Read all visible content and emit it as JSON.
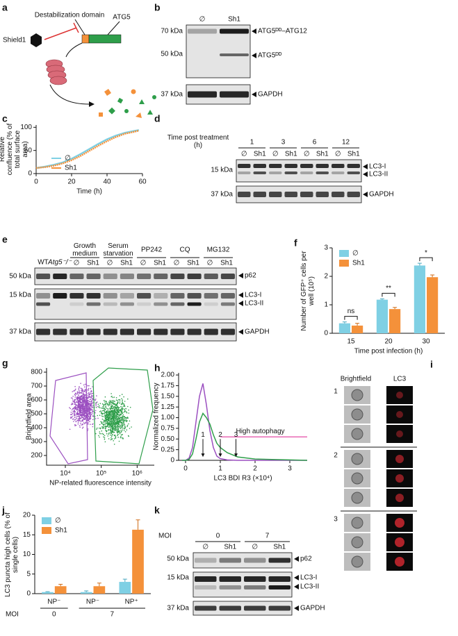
{
  "a": {
    "label": "a",
    "shield": "Shield1",
    "domain": "Destabilization domain",
    "gene": "ATG5"
  },
  "b": {
    "label": "b",
    "lanes": [
      "∅",
      "Sh1"
    ],
    "markers": [
      "70 kDa",
      "50 kDa",
      "37 kDa"
    ],
    "bands": [
      "ATG5ᴰᴰ–ATG12",
      "ATG5ᴰᴰ",
      "GAPDH"
    ]
  },
  "d": {
    "label": "d",
    "time_title": "Time post treatment (h)",
    "times": [
      "1",
      "3",
      "6",
      "12"
    ],
    "lanes": [
      "∅",
      "Sh1"
    ],
    "markers": [
      "15 kDa",
      "37 kDa"
    ],
    "bands": [
      "LC3-I",
      "LC3-II",
      "GAPDH"
    ]
  },
  "e": {
    "label": "e",
    "groups": [
      "WT",
      "Atg5⁻/⁻",
      "Growth medium",
      "Serum starvation",
      "PP242",
      "CQ",
      "MG132"
    ],
    "lanes": [
      "∅",
      "Sh1"
    ],
    "markers": [
      "50 kDa",
      "15 kDa",
      "37 kDa"
    ],
    "bands": [
      "p62",
      "LC3-I",
      "LC3-II",
      "GAPDH"
    ]
  },
  "i": {
    "label": "i",
    "columns": [
      "Brightfield",
      "LC3"
    ],
    "rows": [
      "1",
      "2",
      "3"
    ]
  },
  "k": {
    "label": "k",
    "moi_title": "MOI",
    "mois": [
      "0",
      "7"
    ],
    "lanes": [
      "∅",
      "Sh1"
    ],
    "markers": [
      "50 kDa",
      "15 kDa",
      "37 kDa"
    ],
    "bands": [
      "p62",
      "LC3-I",
      "LC3-II",
      "GAPDH"
    ]
  },
  "chart_data": [
    {
      "type": "line",
      "label": "c",
      "y_label": "Relative confluence (% of total surface area)",
      "x_label": "Time (h)",
      "x": [
        0,
        5,
        10,
        15,
        20,
        25,
        30,
        35,
        40,
        45,
        50,
        55,
        58
      ],
      "series": [
        {
          "name": "∅",
          "color": "#7fd0e4",
          "values": [
            12,
            15,
            19,
            24,
            32,
            42,
            53,
            64,
            74,
            82,
            88,
            92,
            94
          ]
        },
        {
          "name": "Sh1",
          "color": "#f4913a",
          "values": [
            12,
            14,
            17,
            22,
            29,
            38,
            49,
            60,
            70,
            79,
            86,
            90,
            93
          ]
        }
      ],
      "xlim": [
        0,
        60
      ],
      "xticks": [
        0,
        20,
        40,
        60
      ],
      "ylim": [
        0,
        105
      ],
      "yticks": [
        0,
        50,
        100
      ]
    },
    {
      "type": "bar",
      "label": "f",
      "y_label": "Number of GFP⁺ cells per well (10⁵)",
      "x_label": "Time post infection (h)",
      "categories": [
        "15",
        "20",
        "30"
      ],
      "series": [
        {
          "name": "∅",
          "color": "#7fd0e4",
          "values": [
            0.35,
            1.18,
            2.38
          ],
          "errors": [
            0.05,
            0.03,
            0.08
          ]
        },
        {
          "name": "Sh1",
          "color": "#f4913a",
          "values": [
            0.27,
            0.85,
            1.97
          ],
          "errors": [
            0.08,
            0.06,
            0.08
          ]
        }
      ],
      "annotations": [
        "ns",
        "**",
        "*"
      ],
      "ylim": [
        0,
        3
      ],
      "yticks": [
        0,
        1,
        2,
        3
      ]
    },
    {
      "type": "scatter",
      "label": "g",
      "y_label": "Brightfield area",
      "x_label": "NP-related fluorescence intensity",
      "log_x": true,
      "xlim": [
        3000,
        3000000
      ],
      "xticks": [
        {
          "value": 10000,
          "label": "10⁴"
        },
        {
          "value": 100000,
          "label": "10⁵"
        },
        {
          "value": 1000000,
          "label": "10⁶"
        }
      ],
      "ylim": [
        130,
        830
      ],
      "yticks": [
        200,
        300,
        400,
        500,
        600,
        700,
        800
      ],
      "series": [
        {
          "color": "#9b4fc0"
        },
        {
          "color": "#2e9e4a"
        }
      ]
    },
    {
      "type": "histogram-line",
      "label": "h",
      "y_label": "Normalized frequency",
      "x_label": "LC3 BDI R3 (×10⁴)",
      "x": [
        -0.1,
        0,
        0.1,
        0.2,
        0.3,
        0.4,
        0.5,
        0.6,
        0.7,
        0.8,
        0.9,
        1.0,
        1.2,
        1.5,
        2,
        3,
        3.5
      ],
      "series": [
        {
          "color": "#9b4fc0",
          "values": [
            0,
            0,
            0.05,
            0.3,
            0.9,
            1.5,
            1.8,
            1.3,
            0.7,
            0.3,
            0.1,
            0.04,
            0.01,
            0,
            0,
            0,
            0
          ]
        },
        {
          "color": "#2e9e4a",
          "values": [
            0,
            0,
            0.02,
            0.15,
            0.5,
            0.9,
            1.1,
            1.0,
            0.85,
            0.6,
            0.4,
            0.3,
            0.18,
            0.08,
            0.03,
            0.01,
            0
          ]
        }
      ],
      "threshold": {
        "label": "High autophagy",
        "value": 0.55,
        "color": "#e0359a"
      },
      "markers": [
        {
          "label": "1",
          "x": 0.5
        },
        {
          "label": "2",
          "x": 1.0
        },
        {
          "label": "3",
          "x": 1.45
        }
      ],
      "xlim": [
        -0.2,
        3.5
      ],
      "xticks": [
        0,
        1,
        2,
        3
      ],
      "ylim": [
        0,
        2.05
      ],
      "yticks": [
        0,
        0.25,
        {
          "value": 0.5,
          "label": "0.50"
        },
        0.75,
        {
          "value": 1,
          "label": "1.00"
        },
        1.25,
        {
          "value": 1.5,
          "label": "1.50"
        },
        1.75,
        {
          "value": 2,
          "label": "2.00"
        }
      ]
    },
    {
      "type": "bar",
      "label": "j",
      "y_label": "LC3 puncta high cells (% of single cells)",
      "categories": [
        "NP⁻",
        "NP⁻",
        "NP⁺"
      ],
      "moi_title": "MOI",
      "moi": [
        "0",
        "7"
      ],
      "series": [
        {
          "name": "∅",
          "color": "#7fd0e4",
          "values": [
            0.4,
            0.4,
            3.0
          ],
          "errors": [
            0.1,
            0.3,
            0.7
          ]
        },
        {
          "name": "Sh1",
          "color": "#f4913a",
          "values": [
            1.9,
            1.9,
            16.3
          ],
          "errors": [
            0.5,
            0.8,
            2.5
          ]
        }
      ],
      "ylim": [
        0,
        20
      ],
      "yticks": [
        0,
        5,
        10,
        15,
        20
      ]
    }
  ]
}
